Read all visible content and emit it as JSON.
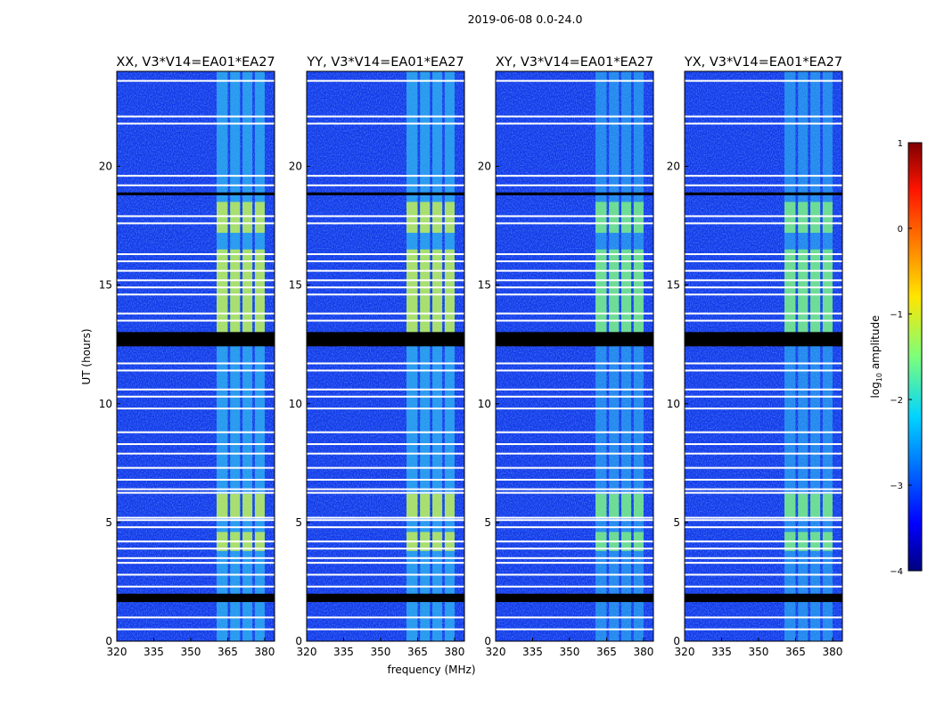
{
  "chart_data": {
    "type": "heatmap",
    "title": "2019-06-08 0.0-24.0",
    "xlabel": "frequency (MHz)",
    "ylabel": "UT (hours)",
    "xlim": [
      320,
      384
    ],
    "ylim": [
      0,
      24
    ],
    "xticks": [
      "320",
      "335",
      "350",
      "365",
      "380"
    ],
    "xtick_values": [
      320,
      335,
      350,
      365,
      380
    ],
    "yticks": [
      "0",
      "5",
      "10",
      "15",
      "20"
    ],
    "ytick_values": [
      0,
      5,
      10,
      15,
      20
    ],
    "panels": [
      {
        "title": "XX, V3*V14=EA01*EA27",
        "rfi_strength": 1.0
      },
      {
        "title": "YY, V3*V14=EA01*EA27",
        "rfi_strength": 1.0
      },
      {
        "title": "XY, V3*V14=EA01*EA27",
        "rfi_strength": 0.75
      },
      {
        "title": "YX, V3*V14=EA01*EA27",
        "rfi_strength": 0.75
      }
    ],
    "rfi_bands_mhz": [
      [
        360.5,
        365
      ],
      [
        366,
        370
      ],
      [
        371,
        375
      ],
      [
        376,
        380
      ]
    ],
    "strong_periods_hours": [
      [
        13.0,
        16.5
      ],
      [
        5.2,
        6.2
      ],
      [
        3.8,
        4.6
      ],
      [
        17.2,
        18.5
      ]
    ],
    "flagged_black_hours": [
      [
        12.42,
        13.02
      ],
      [
        18.78,
        18.9
      ],
      [
        1.65,
        2.0
      ]
    ],
    "flagged_white_hours": [
      23.6,
      22.1,
      21.8,
      19.6,
      19.2,
      17.9,
      17.6,
      16.3,
      16.0,
      15.6,
      15.2,
      14.9,
      14.6,
      13.8,
      13.5,
      11.7,
      11.4,
      10.6,
      10.3,
      9.8,
      8.8,
      8.3,
      7.9,
      7.3,
      6.8,
      6.4,
      6.25,
      5.2,
      5.1,
      4.8,
      4.2,
      3.9,
      3.5,
      3.3,
      2.8,
      2.3,
      1.0,
      0.5
    ],
    "colorbar": {
      "label": "log10 amplitude",
      "label_main": "log",
      "label_sub": "10",
      "label_rest": " amplitude",
      "range": [
        -4,
        1
      ],
      "ticks": [
        "−4",
        "−3",
        "−2",
        "−1",
        "0",
        "1"
      ],
      "tick_values": [
        -4,
        -3,
        -2,
        -1,
        0,
        1
      ],
      "colormap": "jet"
    }
  }
}
